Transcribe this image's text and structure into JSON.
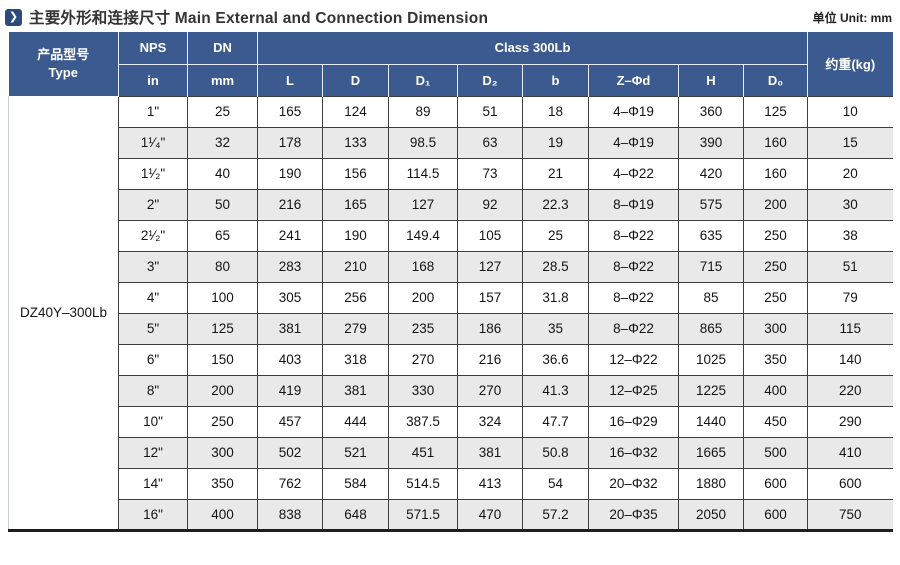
{
  "page": {
    "title": "主要外形和连接尺寸 Main External and Connection Dimension",
    "unit_label": "单位 Unit: mm",
    "title_icon_glyph": "❯"
  },
  "table": {
    "headers": {
      "type_line1": "产品型号",
      "type_line2": "Type",
      "nps": "NPS",
      "nps_unit": "in",
      "dn": "DN",
      "dn_unit": "mm",
      "class_group": "Class 300Lb",
      "class_columns": [
        "L",
        "D",
        "D₁",
        "D₂",
        "b",
        "Z–Φd",
        "H",
        "D₀"
      ],
      "weight": "约重(kg)"
    },
    "type_value": "DZ40Y–300Lb",
    "rows": [
      [
        "1\"",
        "25",
        "165",
        "124",
        "89",
        "51",
        "18",
        "4–Φ19",
        "360",
        "125",
        "10"
      ],
      [
        "1¹⁄₄\"",
        "32",
        "178",
        "133",
        "98.5",
        "63",
        "19",
        "4–Φ19",
        "390",
        "160",
        "15"
      ],
      [
        "1¹⁄₂\"",
        "40",
        "190",
        "156",
        "114.5",
        "73",
        "21",
        "4–Φ22",
        "420",
        "160",
        "20"
      ],
      [
        "2\"",
        "50",
        "216",
        "165",
        "127",
        "92",
        "22.3",
        "8–Φ19",
        "575",
        "200",
        "30"
      ],
      [
        "2¹⁄₂\"",
        "65",
        "241",
        "190",
        "149.4",
        "105",
        "25",
        "8–Φ22",
        "635",
        "250",
        "38"
      ],
      [
        "3\"",
        "80",
        "283",
        "210",
        "168",
        "127",
        "28.5",
        "8–Φ22",
        "715",
        "250",
        "51"
      ],
      [
        "4\"",
        "100",
        "305",
        "256",
        "200",
        "157",
        "31.8",
        "8–Φ22",
        "85",
        "250",
        "79"
      ],
      [
        "5\"",
        "125",
        "381",
        "279",
        "235",
        "186",
        "35",
        "8–Φ22",
        "865",
        "300",
        "115"
      ],
      [
        "6\"",
        "150",
        "403",
        "318",
        "270",
        "216",
        "36.6",
        "12–Φ22",
        "1025",
        "350",
        "140"
      ],
      [
        "8\"",
        "200",
        "419",
        "381",
        "330",
        "270",
        "41.3",
        "12–Φ25",
        "1225",
        "400",
        "220"
      ],
      [
        "10\"",
        "250",
        "457",
        "444",
        "387.5",
        "324",
        "47.7",
        "16–Φ29",
        "1440",
        "450",
        "290"
      ],
      [
        "12\"",
        "300",
        "502",
        "521",
        "451",
        "381",
        "50.8",
        "16–Φ32",
        "1665",
        "500",
        "410"
      ],
      [
        "14\"",
        "350",
        "762",
        "584",
        "514.5",
        "413",
        "54",
        "20–Φ32",
        "1880",
        "600",
        "600"
      ],
      [
        "16\"",
        "400",
        "838",
        "648",
        "571.5",
        "470",
        "57.2",
        "20–Φ35",
        "2050",
        "600",
        "750"
      ]
    ]
  },
  "colors": {
    "header_bg": "#3b5a90",
    "stripe_bg": "#e9e9e9",
    "body_border": "#3f3f3f",
    "bottom_border": "#1e1e1e",
    "icon_bg": "#2d4a7c"
  }
}
